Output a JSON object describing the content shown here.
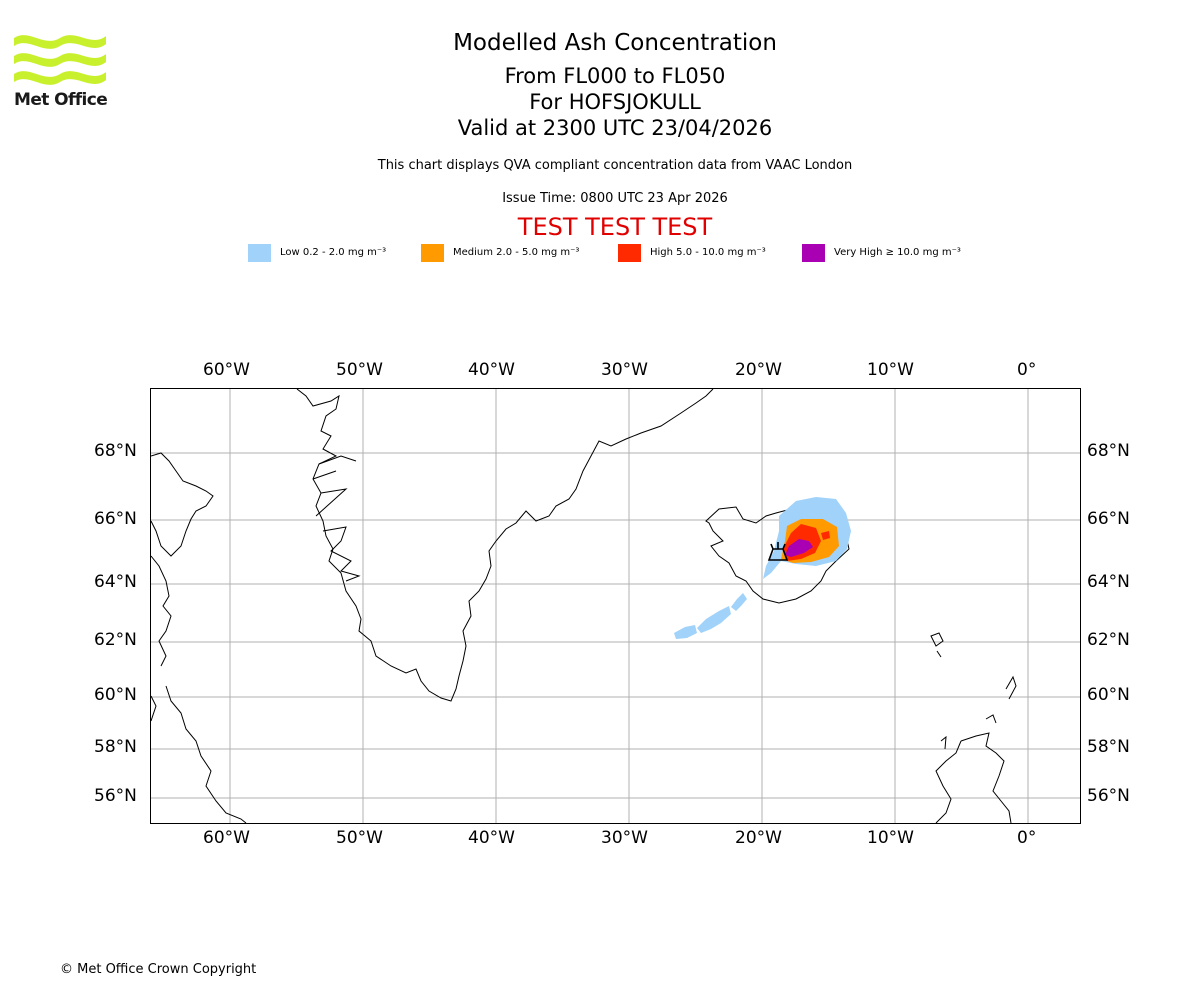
{
  "logo": {
    "brand": "Met Office",
    "accent": "#c8f02d"
  },
  "header": {
    "title": "Modelled Ash Concentration",
    "level_range": "From FL000 to FL050",
    "volcano": "For HOFSJOKULL",
    "valid_time": "Valid at 2300 UTC 23/04/2026",
    "description": "This chart displays QVA compliant concentration data from VAAC London",
    "issue_time": "Issue Time: 0800 UTC 23 Apr 2026",
    "test_banner": "TEST TEST TEST",
    "test_color": "#e00000"
  },
  "legend": [
    {
      "label": "Low 0.2 - 2.0 mg m⁻³",
      "color": "#a0d2fa"
    },
    {
      "label": "Medium 2.0 - 5.0 mg m⁻³",
      "color": "#ff9a00"
    },
    {
      "label": "High 5.0 - 10.0 mg m⁻³",
      "color": "#ff2a00"
    },
    {
      "label": "Very High ≥ 10.0 mg m⁻³",
      "color": "#aa00b4"
    }
  ],
  "map": {
    "longitude_labels": [
      "60°W",
      "50°W",
      "40°W",
      "30°W",
      "20°W",
      "10°W",
      "0°"
    ],
    "latitude_labels": [
      "68°N",
      "66°N",
      "64°N",
      "62°N",
      "60°N",
      "58°N",
      "56°N"
    ],
    "volcano_marker": "volcano-symbol"
  },
  "footer": {
    "copyright": "© Met Office Crown Copyright"
  }
}
